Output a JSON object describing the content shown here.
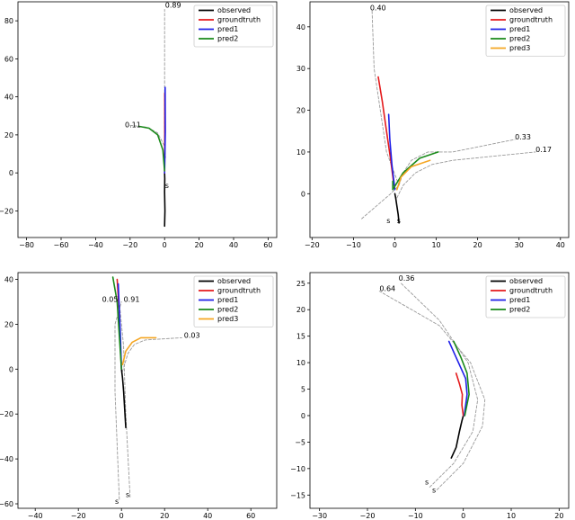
{
  "chart_data": [
    {
      "type": "line",
      "xlim": [
        -85,
        65
      ],
      "ylim": [
        -34,
        90
      ],
      "xticks": [
        -80,
        -60,
        -40,
        -20,
        0,
        20,
        40,
        60
      ],
      "yticks": [
        -20,
        0,
        20,
        40,
        60,
        80
      ],
      "legend": {
        "placement": "top-right",
        "entries": [
          "observed",
          "groundtruth",
          "pred1",
          "pred2"
        ]
      },
      "series": [
        {
          "name": "observed",
          "color": "#000000",
          "style": "solid",
          "x": [
            0,
            0.2,
            0,
            0.1,
            0
          ],
          "y": [
            -28,
            -20,
            -10,
            -3,
            0
          ]
        },
        {
          "name": "groundtruth",
          "color": "#e41a1c",
          "style": "solid",
          "x": [
            0,
            0.1,
            0.1
          ],
          "y": [
            0,
            20,
            42
          ]
        },
        {
          "name": "pred1",
          "color": "#1f1fe8",
          "style": "solid",
          "x": [
            0,
            0.4,
            0.3
          ],
          "y": [
            0,
            22,
            45
          ]
        },
        {
          "name": "pred2",
          "color": "#1a8a1a",
          "style": "solid",
          "x": [
            0,
            -1,
            -4,
            -9,
            -15
          ],
          "y": [
            1,
            12,
            20,
            23.5,
            24.5
          ]
        },
        {
          "name": "",
          "color": "#999999",
          "style": "dashed",
          "x": [
            0,
            0,
            0
          ],
          "y": [
            -5,
            40,
            86
          ]
        },
        {
          "name": "",
          "color": "#999999",
          "style": "dashed",
          "x": [
            -20,
            -10,
            -4,
            0,
            0.5
          ],
          "y": [
            25,
            24,
            21,
            14,
            8
          ]
        }
      ],
      "annotations": [
        {
          "text": "0.89",
          "x": 0.3,
          "y": 87
        },
        {
          "text": "0.11",
          "x": -23,
          "y": 24
        },
        {
          "text": "s",
          "x": 0.3,
          "y": -8
        }
      ]
    },
    {
      "type": "line",
      "xlim": [
        -20.5,
        42
      ],
      "ylim": [
        -10.5,
        46
      ],
      "xticks": [
        -20,
        -10,
        0,
        10,
        20,
        30,
        40
      ],
      "yticks": [
        0,
        10,
        20,
        30,
        40
      ],
      "legend": {
        "placement": "top-right",
        "entries": [
          "observed",
          "groundtruth",
          "pred1",
          "pred2",
          "pred3"
        ]
      },
      "series": [
        {
          "name": "observed",
          "color": "#000000",
          "style": "solid",
          "x": [
            1,
            0.8,
            0.5,
            0.2,
            0
          ],
          "y": [
            -7,
            -5,
            -3,
            -1,
            0
          ]
        },
        {
          "name": "groundtruth",
          "color": "#e41a1c",
          "style": "solid",
          "x": [
            -0.2,
            -1,
            -2,
            -3,
            -4
          ],
          "y": [
            2,
            8,
            15,
            22,
            28
          ]
        },
        {
          "name": "pred1",
          "color": "#1f1fe8",
          "style": "solid",
          "x": [
            0,
            -0.7,
            -1.2,
            -1.5
          ],
          "y": [
            1,
            7,
            13,
            19
          ]
        },
        {
          "name": "pred2",
          "color": "#1a8a1a",
          "style": "solid",
          "x": [
            -0.5,
            -0.5,
            2,
            6,
            10.5
          ],
          "y": [
            3,
            1,
            5,
            8.5,
            10
          ]
        },
        {
          "name": "pred3",
          "color": "#f5a623",
          "style": "solid",
          "x": [
            0.5,
            1.5,
            4,
            8.5
          ],
          "y": [
            1,
            4,
            6.5,
            8
          ]
        },
        {
          "name": "",
          "color": "#999999",
          "style": "dashed",
          "x": [
            -8,
            -1,
            1,
            -2,
            -5,
            -5.5
          ],
          "y": [
            -6,
            0,
            2,
            10,
            30,
            44
          ]
        },
        {
          "name": "",
          "color": "#999999",
          "style": "dashed",
          "x": [
            1,
            2,
            4,
            8,
            14,
            29
          ],
          "y": [
            2,
            5,
            8,
            10,
            10,
            13
          ]
        },
        {
          "name": "",
          "color": "#999999",
          "style": "dashed",
          "x": [
            0.5,
            2,
            5,
            9,
            14,
            34
          ],
          "y": [
            -1,
            2,
            5,
            7,
            8,
            10
          ]
        }
      ],
      "annotations": [
        {
          "text": "0.40",
          "x": -6,
          "y": 44
        },
        {
          "text": "0.33",
          "x": 29,
          "y": 13
        },
        {
          "text": "0.17",
          "x": 34,
          "y": 10
        },
        {
          "text": "s",
          "x": -2,
          "y": -7
        },
        {
          "text": "s",
          "x": 0.5,
          "y": -7
        }
      ]
    },
    {
      "type": "line",
      "xlim": [
        -48,
        72
      ],
      "ylim": [
        -62,
        43
      ],
      "xticks": [
        -40,
        -20,
        0,
        20,
        40,
        60
      ],
      "yticks": [
        -60,
        -40,
        -20,
        0,
        20,
        40
      ],
      "legend": {
        "placement": "top-right",
        "entries": [
          "observed",
          "groundtruth",
          "pred1",
          "pred2",
          "pred3"
        ]
      },
      "series": [
        {
          "name": "observed",
          "color": "#000000",
          "style": "solid",
          "x": [
            2,
            1.5,
            1,
            0.5,
            0
          ],
          "y": [
            -26,
            -18,
            -10,
            -4,
            0
          ]
        },
        {
          "name": "groundtruth",
          "color": "#e41a1c",
          "style": "solid",
          "x": [
            0,
            -0.5,
            -1,
            -2
          ],
          "y": [
            0,
            10,
            25,
            40
          ]
        },
        {
          "name": "pred1",
          "color": "#1f1fe8",
          "style": "solid",
          "x": [
            0,
            -0.5,
            -1.5
          ],
          "y": [
            0,
            15,
            38
          ]
        },
        {
          "name": "pred2",
          "color": "#1a8a1a",
          "style": "solid",
          "x": [
            0,
            -1,
            -2,
            -4
          ],
          "y": [
            0,
            15,
            30,
            41
          ]
        },
        {
          "name": "pred3",
          "color": "#f5a623",
          "style": "solid",
          "x": [
            0.5,
            2,
            5,
            9,
            16
          ],
          "y": [
            2,
            8,
            12,
            14,
            14
          ]
        },
        {
          "name": "",
          "color": "#999999",
          "style": "dashed",
          "x": [
            -1,
            -3,
            -3,
            0
          ],
          "y": [
            -58,
            -10,
            20,
            30
          ]
        },
        {
          "name": "",
          "color": "#999999",
          "style": "dashed",
          "x": [
            4,
            2,
            1,
            -1
          ],
          "y": [
            -57,
            -20,
            10,
            30
          ]
        },
        {
          "name": "",
          "color": "#999999",
          "style": "dashed",
          "x": [
            0.5,
            3,
            6,
            11,
            28
          ],
          "y": [
            -1,
            7,
            11,
            13,
            14
          ]
        }
      ],
      "annotations": [
        {
          "text": "0.05",
          "x": -9,
          "y": 30
        },
        {
          "text": "0.91",
          "x": 1,
          "y": 30
        },
        {
          "text": "0.03",
          "x": 29,
          "y": 14
        },
        {
          "text": "s",
          "x": -3,
          "y": -60
        },
        {
          "text": "s",
          "x": 2,
          "y": -57
        }
      ]
    },
    {
      "type": "line",
      "xlim": [
        -32,
        22
      ],
      "ylim": [
        -17.5,
        27
      ],
      "xticks": [
        -30,
        -20,
        -10,
        0,
        10,
        20
      ],
      "yticks": [
        -15,
        -10,
        -5,
        0,
        5,
        10,
        15,
        20,
        25
      ],
      "legend": {
        "placement": "top-right",
        "entries": [
          "observed",
          "groundtruth",
          "pred1",
          "pred2"
        ]
      },
      "series": [
        {
          "name": "observed",
          "color": "#000000",
          "style": "solid",
          "x": [
            -2.5,
            -1.5,
            -0.8,
            -0.3,
            0
          ],
          "y": [
            -8,
            -6,
            -3,
            -1,
            0
          ]
        },
        {
          "name": "groundtruth",
          "color": "#e41a1c",
          "style": "solid",
          "x": [
            0,
            -0.3,
            -0.2,
            -0.8,
            -1.5
          ],
          "y": [
            0,
            2,
            4,
            6,
            8
          ]
        },
        {
          "name": "pred1",
          "color": "#1f1fe8",
          "style": "solid",
          "x": [
            0.2,
            0.8,
            0.5,
            -1,
            -3
          ],
          "y": [
            0,
            4,
            7,
            10,
            14
          ]
        },
        {
          "name": "pred2",
          "color": "#1a8a1a",
          "style": "solid",
          "x": [
            0.3,
            1.2,
            0.8,
            -0.5,
            -2
          ],
          "y": [
            0,
            4,
            8,
            11,
            14
          ]
        },
        {
          "name": "",
          "color": "#999999",
          "style": "dashed",
          "x": [
            -7,
            -2,
            2,
            3,
            1,
            -5,
            -13
          ],
          "y": [
            -13.5,
            -9,
            -3,
            3,
            10,
            18,
            25
          ]
        },
        {
          "name": "",
          "color": "#999999",
          "style": "dashed",
          "x": [
            -5.5,
            0,
            4,
            4.5,
            1.5,
            -5,
            -17.5
          ],
          "y": [
            -14,
            -9,
            -2,
            3,
            10,
            17,
            23.5
          ]
        }
      ],
      "annotations": [
        {
          "text": "0.36",
          "x": -13.5,
          "y": 25.5
        },
        {
          "text": "0.64",
          "x": -17.5,
          "y": 23.5
        },
        {
          "text": "s",
          "x": -8,
          "y": -13
        },
        {
          "text": "s",
          "x": -6.5,
          "y": -14.5
        }
      ]
    }
  ]
}
